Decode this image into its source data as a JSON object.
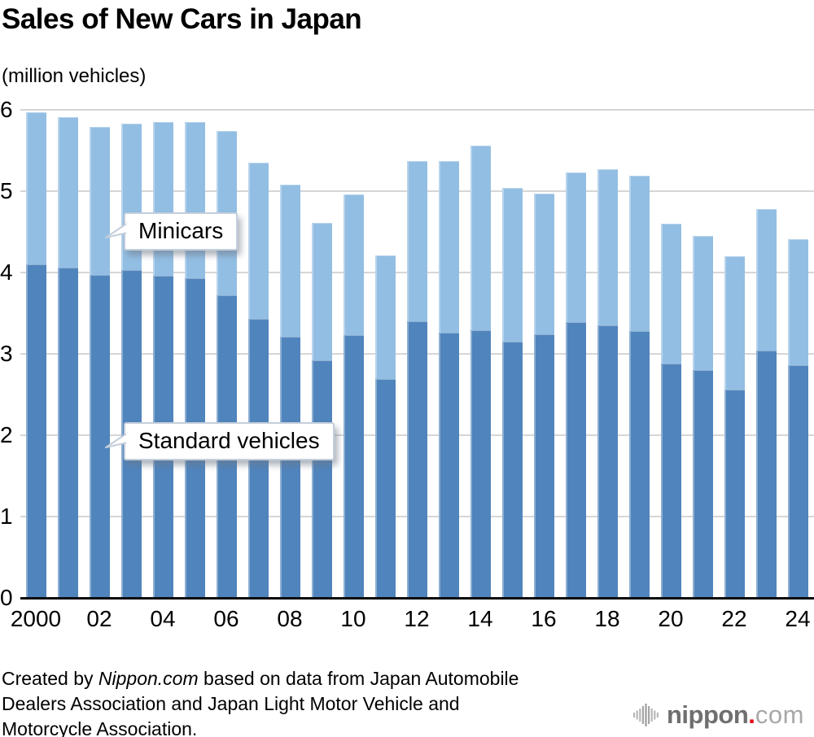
{
  "title": "Sales of New Cars in Japan",
  "unit_label": "(million vehicles)",
  "annotations": {
    "minicars_label": "Minicars",
    "standard_label": "Standard vehicles"
  },
  "footer": {
    "line1_prefix": "Created by ",
    "brand": "Nippon.com",
    "line1_suffix": " based on data from Japan Automobile",
    "line2": "Dealers Association and Japan Light Motor Vehicle and",
    "line3": "Motorcycle Association."
  },
  "logo": {
    "icon_name": "soundwave-icon",
    "name": "nippon",
    "dot": ".",
    "tld": "com"
  },
  "chart_data": {
    "type": "bar",
    "stacked": true,
    "title": "Sales of New Cars in Japan",
    "ylabel": "(million vehicles)",
    "ylim": [
      0,
      6
    ],
    "yticks": [
      0,
      1,
      2,
      3,
      4,
      5,
      6
    ],
    "grid": "horizontal",
    "legend_position": "in-plot callouts",
    "categories": [
      2000,
      2001,
      2002,
      2003,
      2004,
      2005,
      2006,
      2007,
      2008,
      2009,
      2010,
      2011,
      2012,
      2013,
      2014,
      2015,
      2016,
      2017,
      2018,
      2019,
      2020,
      2021,
      2022,
      2023,
      2024
    ],
    "x_tick_labels": [
      "2000",
      "02",
      "04",
      "06",
      "08",
      "10",
      "12",
      "14",
      "16",
      "18",
      "20",
      "22",
      "24"
    ],
    "x_tick_every": 2,
    "series": [
      {
        "name": "Standard vehicles",
        "color": "#5084bc",
        "values": [
          4.1,
          4.06,
          3.97,
          4.03,
          3.96,
          3.93,
          3.72,
          3.43,
          3.21,
          2.92,
          3.23,
          2.69,
          3.4,
          3.26,
          3.29,
          3.15,
          3.24,
          3.39,
          3.35,
          3.28,
          2.88,
          2.8,
          2.56,
          3.04,
          2.86
        ]
      },
      {
        "name": "Minicars",
        "color": "#93bee3",
        "values": [
          1.87,
          1.85,
          1.82,
          1.8,
          1.89,
          1.92,
          2.02,
          1.92,
          1.87,
          1.69,
          1.73,
          1.52,
          1.97,
          2.11,
          2.27,
          1.89,
          1.73,
          1.84,
          1.92,
          1.91,
          1.72,
          1.65,
          1.64,
          1.74,
          1.55
        ]
      }
    ],
    "colors": {
      "standard_vehicles": "#5084bc",
      "minicars": "#93bee3",
      "gridline": "#d6d6d6",
      "axis_line": "#0a0a0a",
      "logo_red": "#e60012"
    }
  }
}
